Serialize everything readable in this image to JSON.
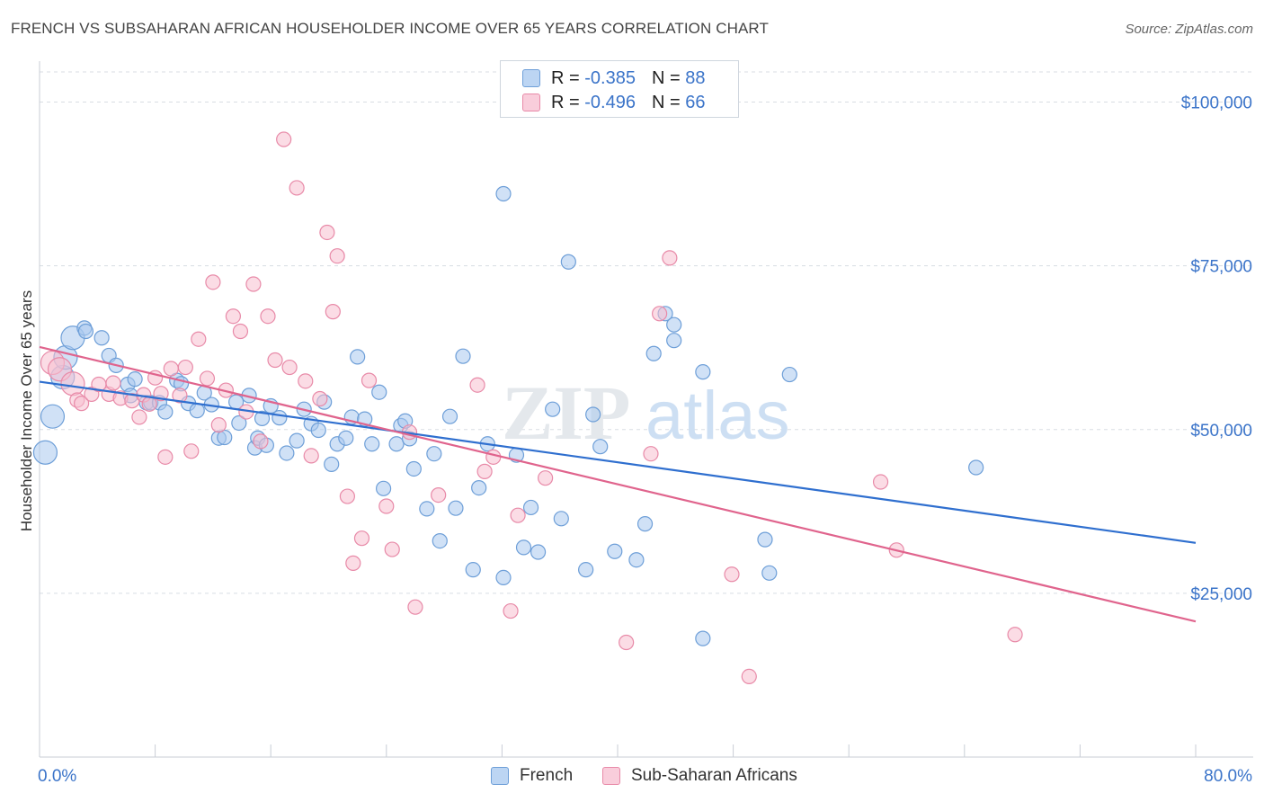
{
  "header": {
    "title": "FRENCH VS SUBSAHARAN AFRICAN HOUSEHOLDER INCOME OVER 65 YEARS CORRELATION CHART",
    "source": "Source: ZipAtlas.com"
  },
  "watermark": {
    "zip": "ZIP",
    "atlas": "atlas"
  },
  "legend": {
    "rows": [
      {
        "r_label": "R =",
        "r_value": "-0.385",
        "n_label": "N =",
        "n_value": "88"
      },
      {
        "r_label": "R =",
        "r_value": "-0.496",
        "n_label": "N =",
        "n_value": "66"
      }
    ]
  },
  "bottom_legend": {
    "french": "French",
    "subsaharan": "Sub-Saharan Africans"
  },
  "colors": {
    "french_fill": "#a9c8ef",
    "french_stroke": "#6e9fd8",
    "french_line": "#2f6fcf",
    "ssa_fill": "#f7bfd0",
    "ssa_stroke": "#e88aa8",
    "ssa_line": "#e0648d",
    "tick_text": "#3b74c9",
    "grid": "#d8dde3"
  },
  "chart_data": {
    "type": "scatter",
    "title": "FRENCH VS SUBSAHARAN AFRICAN HOUSEHOLDER INCOME OVER 65 YEARS CORRELATION CHART",
    "xlabel": "",
    "ylabel": "Householder Income Over 65 years",
    "xlim": [
      0,
      80
    ],
    "ylim": [
      0,
      105000
    ],
    "x_tick_labels": [
      "0.0%",
      "80.0%"
    ],
    "y_ticks": [
      25000,
      50000,
      75000,
      100000
    ],
    "y_tick_labels": [
      "$25,000",
      "$50,000",
      "$75,000",
      "$100,000"
    ],
    "grid": true,
    "legend_position": "top-center",
    "series": [
      {
        "name": "French",
        "trend": {
          "x": [
            0,
            80
          ],
          "y": [
            57300,
            32700
          ]
        },
        "points": [
          {
            "x": 0.4,
            "y": 46500,
            "s": "l"
          },
          {
            "x": 0.9,
            "y": 52000,
            "s": "l"
          },
          {
            "x": 1.6,
            "y": 58000,
            "s": "l"
          },
          {
            "x": 1.8,
            "y": 61000,
            "s": "l"
          },
          {
            "x": 2.3,
            "y": 64000,
            "s": "l"
          },
          {
            "x": 3.1,
            "y": 65500,
            "s": "m"
          },
          {
            "x": 3.2,
            "y": 65000,
            "s": "m"
          },
          {
            "x": 4.3,
            "y": 64000,
            "s": "m"
          },
          {
            "x": 4.8,
            "y": 61300,
            "s": "m"
          },
          {
            "x": 5.3,
            "y": 59800,
            "s": "m"
          },
          {
            "x": 6.1,
            "y": 56900,
            "s": "m"
          },
          {
            "x": 6.3,
            "y": 55200,
            "s": "m"
          },
          {
            "x": 6.6,
            "y": 57700,
            "s": "m"
          },
          {
            "x": 7.4,
            "y": 54100,
            "s": "m"
          },
          {
            "x": 7.7,
            "y": 54100,
            "s": "m"
          },
          {
            "x": 8.3,
            "y": 54100,
            "s": "m"
          },
          {
            "x": 8.7,
            "y": 52700,
            "s": "m"
          },
          {
            "x": 9.5,
            "y": 57500,
            "s": "m"
          },
          {
            "x": 9.8,
            "y": 57000,
            "s": "m"
          },
          {
            "x": 10.3,
            "y": 54000,
            "s": "m"
          },
          {
            "x": 10.9,
            "y": 52900,
            "s": "m"
          },
          {
            "x": 11.4,
            "y": 55600,
            "s": "m"
          },
          {
            "x": 11.9,
            "y": 53800,
            "s": "m"
          },
          {
            "x": 12.4,
            "y": 48700,
            "s": "m"
          },
          {
            "x": 12.8,
            "y": 48800,
            "s": "m"
          },
          {
            "x": 13.6,
            "y": 54200,
            "s": "m"
          },
          {
            "x": 13.8,
            "y": 51000,
            "s": "m"
          },
          {
            "x": 14.5,
            "y": 55200,
            "s": "m"
          },
          {
            "x": 14.9,
            "y": 47200,
            "s": "m"
          },
          {
            "x": 15.1,
            "y": 48700,
            "s": "m"
          },
          {
            "x": 15.4,
            "y": 51700,
            "s": "m"
          },
          {
            "x": 15.7,
            "y": 47600,
            "s": "m"
          },
          {
            "x": 16.0,
            "y": 53600,
            "s": "m"
          },
          {
            "x": 16.6,
            "y": 51800,
            "s": "m"
          },
          {
            "x": 17.1,
            "y": 46400,
            "s": "m"
          },
          {
            "x": 17.8,
            "y": 48300,
            "s": "m"
          },
          {
            "x": 18.3,
            "y": 53100,
            "s": "m"
          },
          {
            "x": 18.8,
            "y": 50900,
            "s": "m"
          },
          {
            "x": 19.3,
            "y": 49900,
            "s": "m"
          },
          {
            "x": 19.7,
            "y": 54200,
            "s": "m"
          },
          {
            "x": 20.2,
            "y": 44700,
            "s": "m"
          },
          {
            "x": 20.6,
            "y": 47800,
            "s": "m"
          },
          {
            "x": 21.2,
            "y": 48700,
            "s": "m"
          },
          {
            "x": 21.6,
            "y": 51900,
            "s": "m"
          },
          {
            "x": 22.0,
            "y": 61100,
            "s": "m"
          },
          {
            "x": 22.5,
            "y": 51600,
            "s": "m"
          },
          {
            "x": 23.0,
            "y": 47800,
            "s": "m"
          },
          {
            "x": 23.5,
            "y": 55700,
            "s": "m"
          },
          {
            "x": 23.8,
            "y": 41000,
            "s": "m"
          },
          {
            "x": 24.7,
            "y": 47800,
            "s": "m"
          },
          {
            "x": 25.0,
            "y": 50600,
            "s": "m"
          },
          {
            "x": 25.3,
            "y": 51300,
            "s": "m"
          },
          {
            "x": 25.6,
            "y": 48600,
            "s": "m"
          },
          {
            "x": 25.9,
            "y": 44000,
            "s": "m"
          },
          {
            "x": 26.8,
            "y": 37900,
            "s": "m"
          },
          {
            "x": 27.3,
            "y": 46300,
            "s": "m"
          },
          {
            "x": 27.7,
            "y": 33000,
            "s": "m"
          },
          {
            "x": 28.4,
            "y": 52000,
            "s": "m"
          },
          {
            "x": 28.8,
            "y": 38000,
            "s": "m"
          },
          {
            "x": 29.3,
            "y": 61200,
            "s": "m"
          },
          {
            "x": 30.0,
            "y": 28600,
            "s": "m"
          },
          {
            "x": 30.4,
            "y": 41100,
            "s": "m"
          },
          {
            "x": 31.0,
            "y": 47800,
            "s": "m"
          },
          {
            "x": 32.1,
            "y": 86000,
            "s": "m"
          },
          {
            "x": 32.1,
            "y": 27400,
            "s": "m"
          },
          {
            "x": 33.0,
            "y": 46100,
            "s": "m"
          },
          {
            "x": 33.5,
            "y": 32000,
            "s": "m"
          },
          {
            "x": 34.0,
            "y": 38100,
            "s": "m"
          },
          {
            "x": 34.5,
            "y": 31300,
            "s": "m"
          },
          {
            "x": 35.5,
            "y": 53100,
            "s": "m"
          },
          {
            "x": 36.1,
            "y": 36400,
            "s": "m"
          },
          {
            "x": 36.6,
            "y": 75600,
            "s": "m"
          },
          {
            "x": 37.8,
            "y": 28600,
            "s": "m"
          },
          {
            "x": 38.3,
            "y": 52300,
            "s": "m"
          },
          {
            "x": 38.8,
            "y": 47400,
            "s": "m"
          },
          {
            "x": 39.8,
            "y": 31400,
            "s": "m"
          },
          {
            "x": 41.3,
            "y": 30100,
            "s": "m"
          },
          {
            "x": 41.9,
            "y": 35600,
            "s": "m"
          },
          {
            "x": 42.5,
            "y": 61600,
            "s": "m"
          },
          {
            "x": 43.3,
            "y": 67700,
            "s": "m"
          },
          {
            "x": 43.9,
            "y": 66000,
            "s": "m"
          },
          {
            "x": 43.9,
            "y": 63600,
            "s": "m"
          },
          {
            "x": 45.9,
            "y": 18100,
            "s": "m"
          },
          {
            "x": 45.9,
            "y": 58800,
            "s": "m"
          },
          {
            "x": 50.2,
            "y": 33200,
            "s": "m"
          },
          {
            "x": 50.5,
            "y": 28100,
            "s": "m"
          },
          {
            "x": 51.9,
            "y": 58400,
            "s": "m"
          },
          {
            "x": 64.8,
            "y": 44200,
            "s": "m"
          }
        ]
      },
      {
        "name": "Sub-Saharan Africans",
        "trend": {
          "x": [
            0,
            80
          ],
          "y": [
            62600,
            20700
          ]
        },
        "points": [
          {
            "x": 0.9,
            "y": 60200,
            "s": "l"
          },
          {
            "x": 1.4,
            "y": 59200,
            "s": "l"
          },
          {
            "x": 2.3,
            "y": 57000,
            "s": "l"
          },
          {
            "x": 2.6,
            "y": 54500,
            "s": "m"
          },
          {
            "x": 2.9,
            "y": 54000,
            "s": "m"
          },
          {
            "x": 3.6,
            "y": 55400,
            "s": "m"
          },
          {
            "x": 4.1,
            "y": 56900,
            "s": "m"
          },
          {
            "x": 4.8,
            "y": 55400,
            "s": "m"
          },
          {
            "x": 5.1,
            "y": 57100,
            "s": "m"
          },
          {
            "x": 5.6,
            "y": 54800,
            "s": "m"
          },
          {
            "x": 6.4,
            "y": 54400,
            "s": "m"
          },
          {
            "x": 6.9,
            "y": 51900,
            "s": "m"
          },
          {
            "x": 7.2,
            "y": 55300,
            "s": "m"
          },
          {
            "x": 7.6,
            "y": 53900,
            "s": "m"
          },
          {
            "x": 8.0,
            "y": 57900,
            "s": "m"
          },
          {
            "x": 8.4,
            "y": 55500,
            "s": "m"
          },
          {
            "x": 8.7,
            "y": 45800,
            "s": "m"
          },
          {
            "x": 9.1,
            "y": 59300,
            "s": "m"
          },
          {
            "x": 9.7,
            "y": 55200,
            "s": "m"
          },
          {
            "x": 10.1,
            "y": 59500,
            "s": "m"
          },
          {
            "x": 10.5,
            "y": 46700,
            "s": "m"
          },
          {
            "x": 11.0,
            "y": 63800,
            "s": "m"
          },
          {
            "x": 11.6,
            "y": 57800,
            "s": "m"
          },
          {
            "x": 12.0,
            "y": 72500,
            "s": "m"
          },
          {
            "x": 12.4,
            "y": 50700,
            "s": "m"
          },
          {
            "x": 12.9,
            "y": 56000,
            "s": "m"
          },
          {
            "x": 13.4,
            "y": 67300,
            "s": "m"
          },
          {
            "x": 13.9,
            "y": 65000,
            "s": "m"
          },
          {
            "x": 14.3,
            "y": 52700,
            "s": "m"
          },
          {
            "x": 14.8,
            "y": 72200,
            "s": "m"
          },
          {
            "x": 15.3,
            "y": 48200,
            "s": "m"
          },
          {
            "x": 15.8,
            "y": 67300,
            "s": "m"
          },
          {
            "x": 16.3,
            "y": 60600,
            "s": "m"
          },
          {
            "x": 16.9,
            "y": 94300,
            "s": "m"
          },
          {
            "x": 17.3,
            "y": 59500,
            "s": "m"
          },
          {
            "x": 17.8,
            "y": 86900,
            "s": "m"
          },
          {
            "x": 18.4,
            "y": 57400,
            "s": "m"
          },
          {
            "x": 18.8,
            "y": 46000,
            "s": "m"
          },
          {
            "x": 19.4,
            "y": 54700,
            "s": "m"
          },
          {
            "x": 19.9,
            "y": 80100,
            "s": "m"
          },
          {
            "x": 20.3,
            "y": 68000,
            "s": "m"
          },
          {
            "x": 20.6,
            "y": 76500,
            "s": "m"
          },
          {
            "x": 21.3,
            "y": 39800,
            "s": "m"
          },
          {
            "x": 21.7,
            "y": 29600,
            "s": "m"
          },
          {
            "x": 22.3,
            "y": 33400,
            "s": "m"
          },
          {
            "x": 22.8,
            "y": 57500,
            "s": "m"
          },
          {
            "x": 24.0,
            "y": 38300,
            "s": "m"
          },
          {
            "x": 24.4,
            "y": 31700,
            "s": "m"
          },
          {
            "x": 25.6,
            "y": 49600,
            "s": "m"
          },
          {
            "x": 26.0,
            "y": 22900,
            "s": "m"
          },
          {
            "x": 27.6,
            "y": 40000,
            "s": "m"
          },
          {
            "x": 30.3,
            "y": 56800,
            "s": "m"
          },
          {
            "x": 30.8,
            "y": 43600,
            "s": "m"
          },
          {
            "x": 31.4,
            "y": 45800,
            "s": "m"
          },
          {
            "x": 32.6,
            "y": 22300,
            "s": "m"
          },
          {
            "x": 33.1,
            "y": 36900,
            "s": "m"
          },
          {
            "x": 35.0,
            "y": 42600,
            "s": "m"
          },
          {
            "x": 40.6,
            "y": 17500,
            "s": "m"
          },
          {
            "x": 42.3,
            "y": 46300,
            "s": "m"
          },
          {
            "x": 42.9,
            "y": 67700,
            "s": "m"
          },
          {
            "x": 43.6,
            "y": 76200,
            "s": "m"
          },
          {
            "x": 47.9,
            "y": 27900,
            "s": "m"
          },
          {
            "x": 49.1,
            "y": 12300,
            "s": "m"
          },
          {
            "x": 58.2,
            "y": 42000,
            "s": "m"
          },
          {
            "x": 59.3,
            "y": 31600,
            "s": "m"
          },
          {
            "x": 67.5,
            "y": 18700,
            "s": "m"
          }
        ]
      }
    ]
  }
}
